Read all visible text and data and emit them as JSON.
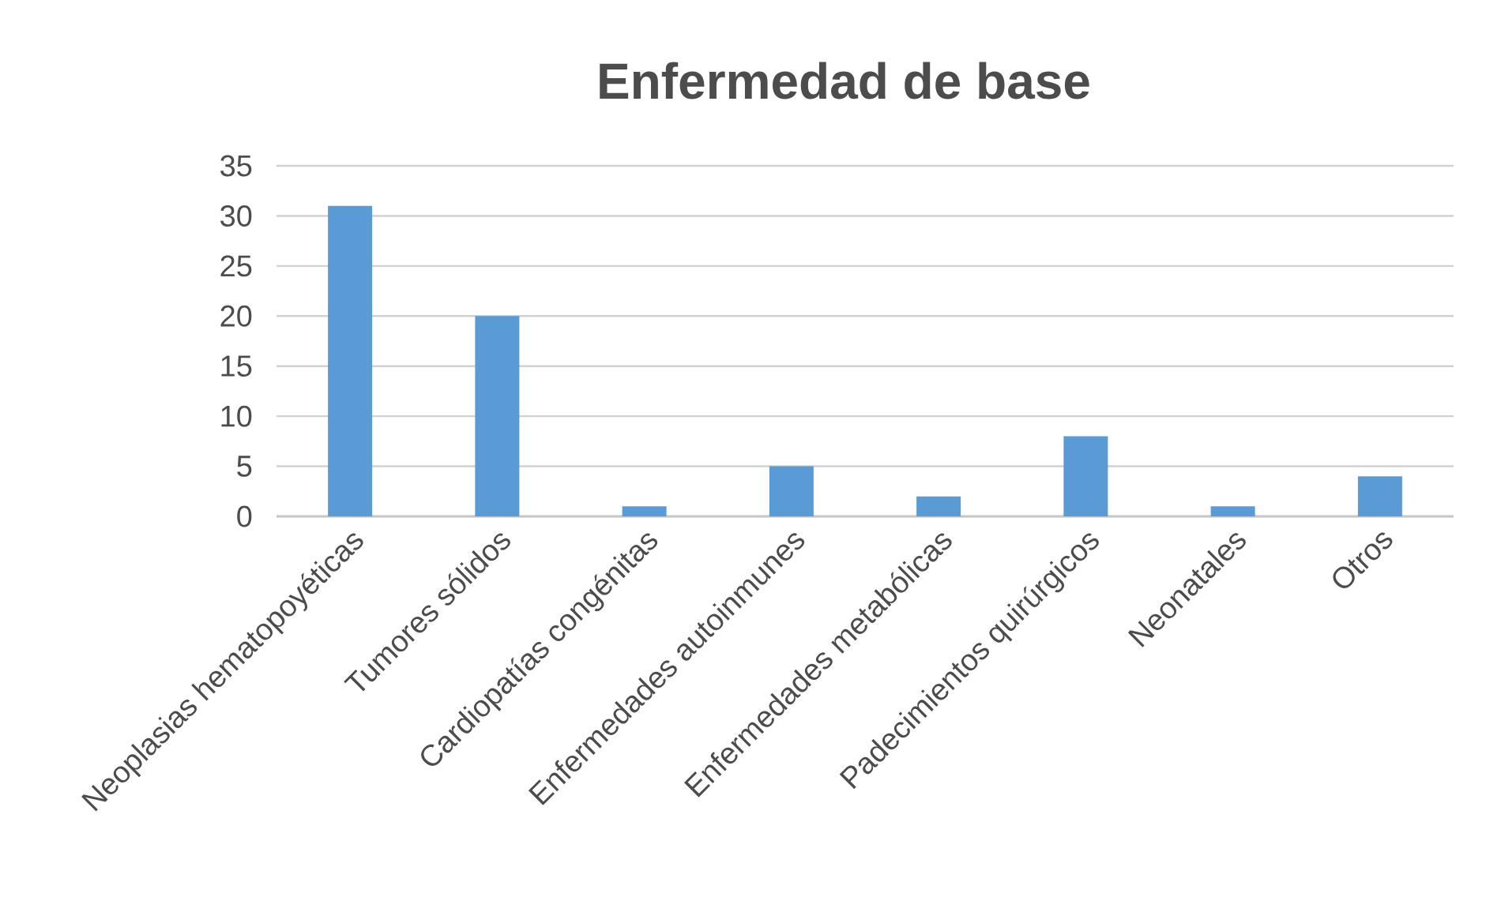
{
  "chart_data": {
    "type": "bar",
    "title": "Enfermedad de base",
    "categories": [
      "Neoplasias hematopoyéticas",
      "Tumores sólidos",
      "Cardiopatías congénitas",
      "Enfermedades autoinmunes",
      "Enfermedades metabólicas",
      "Padecimientos quirúrgicos",
      "Neonatales",
      "Otros"
    ],
    "values": [
      31,
      20,
      1,
      5,
      2,
      8,
      1,
      4
    ],
    "color": "#5b9bd5",
    "ylim": [
      0,
      35
    ],
    "yticks": [
      0,
      5,
      10,
      15,
      20,
      25,
      30,
      35
    ],
    "grid": "y"
  }
}
